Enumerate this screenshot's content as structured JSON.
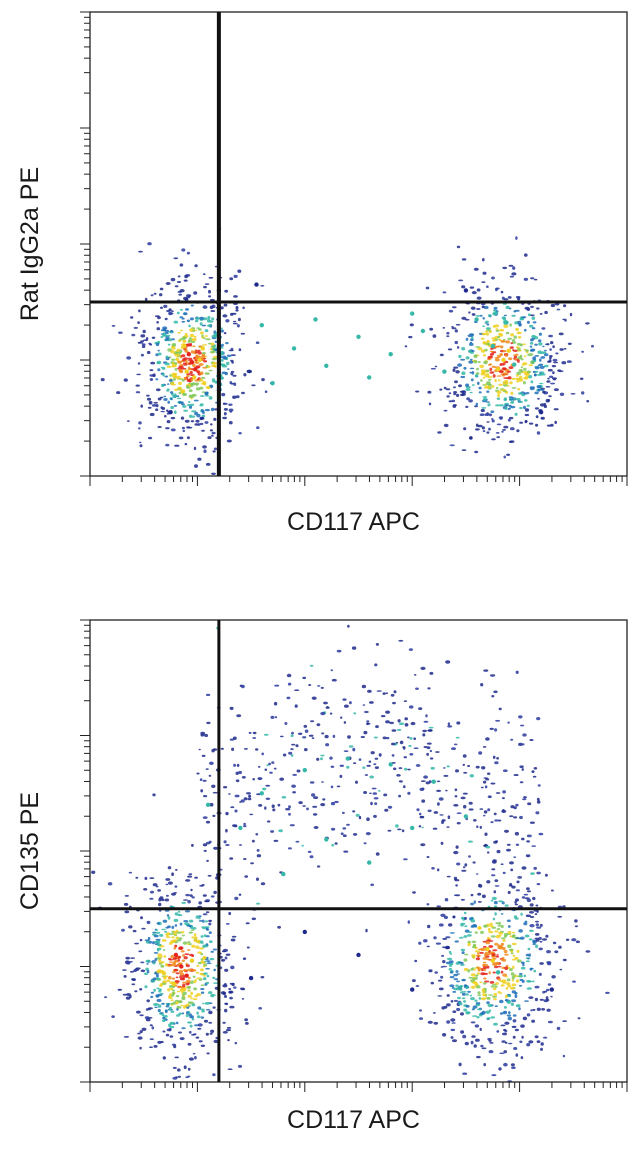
{
  "chart_data": [
    {
      "type": "scatter",
      "subtype": "flow-cytometry-density",
      "title": "",
      "xlabel": "CD117 APC",
      "ylabel": "Rat IgG2a PE",
      "x_scale": "log",
      "y_scale": "log",
      "xlim": [
        0,
        5
      ],
      "ylim": [
        0,
        4
      ],
      "x_tick_labels_shown": false,
      "y_tick_labels_shown": false,
      "grid": false,
      "legend": "none",
      "quadrant_gate": {
        "x": 1.2,
        "y": 1.5
      },
      "populations": [
        {
          "name_hint": "CD117-low",
          "center": [
            0.95,
            0.98
          ],
          "spread": [
            0.25,
            0.35
          ],
          "peak_color": "#e8221a"
        },
        {
          "name_hint": "CD117-high",
          "center": [
            3.85,
            1.0
          ],
          "spread": [
            0.3,
            0.35
          ],
          "peak_color": "#3fbf3a"
        }
      ],
      "points": [
        [
          0.95,
          0.98,
          "hi"
        ],
        [
          0.92,
          1.05,
          "hi"
        ],
        [
          0.98,
          0.92,
          "hi"
        ],
        [
          1.02,
          1.0,
          "md"
        ],
        [
          0.9,
          0.9,
          "md"
        ],
        [
          0.88,
          1.12,
          "md"
        ],
        [
          1.05,
          1.1,
          "md"
        ],
        [
          0.97,
          0.85,
          "md"
        ],
        [
          3.85,
          1.0,
          "md"
        ],
        [
          3.9,
          1.08,
          "md"
        ],
        [
          3.8,
          0.92,
          "md"
        ],
        [
          3.95,
          0.96,
          "lo"
        ],
        [
          3.75,
          1.12,
          "lo"
        ],
        [
          1.6,
          1.3,
          "lo"
        ],
        [
          1.9,
          1.1,
          "lo"
        ],
        [
          2.2,
          0.95,
          "lo"
        ],
        [
          2.5,
          1.2,
          "lo"
        ],
        [
          2.8,
          1.05,
          "lo"
        ],
        [
          3.1,
          1.25,
          "lo"
        ],
        [
          3.3,
          0.9,
          "lo"
        ],
        [
          1.7,
          0.8,
          "lo"
        ],
        [
          2.1,
          1.35,
          "lo"
        ],
        [
          2.6,
          0.85,
          "lo"
        ],
        [
          3.0,
          1.4,
          "lo"
        ],
        [
          3.6,
          1.35,
          "lo"
        ],
        [
          1.2,
          1.6,
          "sp"
        ],
        [
          1.55,
          1.65,
          "sp"
        ],
        [
          3.5,
          1.6,
          "sp"
        ],
        [
          0.75,
          0.55,
          "sp"
        ],
        [
          4.2,
          0.55,
          "sp"
        ]
      ]
    },
    {
      "type": "scatter",
      "subtype": "flow-cytometry-density",
      "title": "",
      "xlabel": "CD117 APC",
      "ylabel": "CD135 PE",
      "x_scale": "log",
      "y_scale": "log",
      "xlim": [
        0,
        5
      ],
      "ylim": [
        0,
        4
      ],
      "x_tick_labels_shown": false,
      "y_tick_labels_shown": false,
      "grid": false,
      "legend": "none",
      "quadrant_gate": {
        "x": 1.2,
        "y": 1.5
      },
      "populations": [
        {
          "name_hint": "CD117-low CD135-low",
          "center": [
            0.85,
            1.0
          ],
          "spread": [
            0.25,
            0.4
          ],
          "peak_color": "#e8221a"
        },
        {
          "name_hint": "CD117-high CD135-low",
          "center": [
            3.75,
            1.05
          ],
          "spread": [
            0.3,
            0.4
          ],
          "peak_color": "#3fbf3a"
        },
        {
          "name_hint": "CD135-high arc",
          "center": [
            2.6,
            2.3
          ],
          "spread": [
            1.2,
            0.6
          ],
          "peak_color": "#1e2a8c"
        }
      ],
      "points": [
        [
          0.85,
          1.0,
          "hi"
        ],
        [
          0.8,
          1.1,
          "hi"
        ],
        [
          0.9,
          0.92,
          "hi"
        ],
        [
          0.95,
          1.05,
          "md"
        ],
        [
          0.78,
          0.85,
          "md"
        ],
        [
          3.75,
          1.05,
          "md"
        ],
        [
          3.7,
          1.15,
          "md"
        ],
        [
          3.8,
          0.95,
          "lo"
        ],
        [
          1.6,
          2.5,
          "lo"
        ],
        [
          2.0,
          2.7,
          "lo"
        ],
        [
          2.4,
          2.8,
          "lo"
        ],
        [
          2.8,
          2.75,
          "lo"
        ],
        [
          3.2,
          2.6,
          "lo"
        ],
        [
          3.5,
          2.3,
          "lo"
        ],
        [
          1.4,
          2.2,
          "lo"
        ],
        [
          1.1,
          2.4,
          "lo"
        ],
        [
          2.2,
          2.1,
          "lo"
        ],
        [
          2.6,
          1.9,
          "lo"
        ],
        [
          3.0,
          2.2,
          "lo"
        ],
        [
          1.8,
          1.8,
          "lo"
        ],
        [
          2.5,
          1.1,
          "sp"
        ],
        [
          2.0,
          1.3,
          "sp"
        ],
        [
          3.0,
          0.8,
          "sp"
        ],
        [
          4.3,
          0.8,
          "sp"
        ],
        [
          1.5,
          0.9,
          "sp"
        ]
      ]
    }
  ]
}
